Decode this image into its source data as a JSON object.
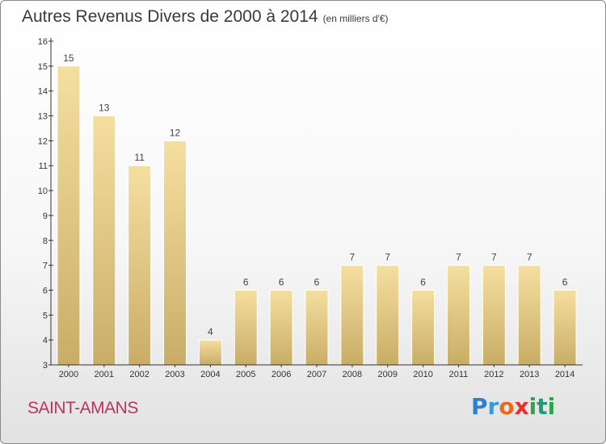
{
  "header": {
    "title": "Autres Revenus Divers de 2000 à 2014",
    "unit": "(en milliers d'€)"
  },
  "footer": {
    "location": "SAINT-AMANS",
    "logo_text": "Proxiti",
    "logo_letters": [
      "P",
      "r",
      "o",
      "x",
      "i",
      "t",
      "i"
    ]
  },
  "chart_data": {
    "type": "bar",
    "categories": [
      "2000",
      "2001",
      "2002",
      "2003",
      "2004",
      "2005",
      "2006",
      "2007",
      "2008",
      "2009",
      "2010",
      "2011",
      "2012",
      "2013",
      "2014"
    ],
    "values": [
      15,
      13,
      11,
      12,
      4,
      6,
      6,
      6,
      7,
      7,
      6,
      7,
      7,
      7,
      6
    ],
    "data_labels": [
      "15",
      "13",
      "11",
      "12",
      "4",
      "6",
      "6",
      "6",
      "7",
      "7",
      "6",
      "7",
      "7",
      "7",
      "6"
    ],
    "ylim": [
      3,
      16
    ],
    "yticks": [
      "3",
      "4",
      "5",
      "6",
      "7",
      "8",
      "9",
      "10",
      "11",
      "12",
      "13",
      "14",
      "15",
      "16"
    ],
    "grid": false,
    "legend": "none",
    "colors": {
      "bar_top": "#f5dfa0",
      "bar_bottom": "#c9ad66",
      "axis": "#333333",
      "tick_text": "#333333",
      "label_text": "#444444"
    }
  }
}
